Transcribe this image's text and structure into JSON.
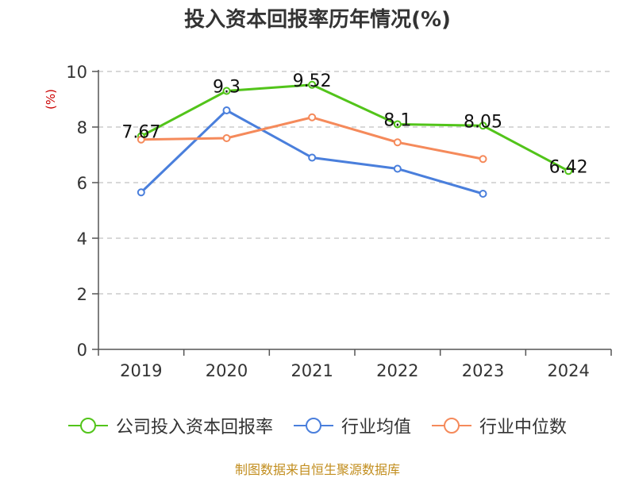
{
  "chart_data": {
    "type": "line",
    "title": "投入资本回报率历年情况(%)",
    "ylabel": "(%)",
    "categories": [
      "2019",
      "2020",
      "2021",
      "2022",
      "2023",
      "2024"
    ],
    "ylim": [
      0,
      10
    ],
    "yticks": [
      0,
      2,
      4,
      6,
      8,
      10
    ],
    "grid": true,
    "legend_position": "bottom",
    "series": [
      {
        "name": "公司投入资本回报率",
        "color": "#52c41a",
        "values": [
          7.67,
          9.3,
          9.52,
          8.1,
          8.05,
          6.42
        ],
        "labels": [
          "7.67",
          "9.3",
          "9.52",
          "8.1",
          "8.05",
          "6.42"
        ]
      },
      {
        "name": "行业均值",
        "color": "#4a7fdc",
        "values": [
          5.65,
          8.6,
          6.9,
          6.5,
          5.6,
          null
        ]
      },
      {
        "name": "行业中位数",
        "color": "#f58a5b",
        "values": [
          7.55,
          7.6,
          8.35,
          7.45,
          6.85,
          null
        ]
      }
    ]
  },
  "source": "制图数据来自恒生聚源数据库"
}
